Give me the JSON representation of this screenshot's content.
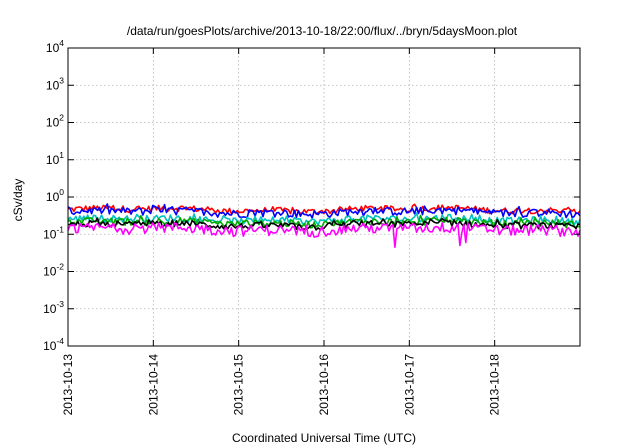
{
  "chart_data": {
    "type": "line",
    "title": "/data/run/goesPlots/archive/2013-10-18/22:00/flux/../bryn/5daysMoon.plot",
    "xlabel": "Coordinated Universal Time (UTC)",
    "ylabel": "cSv/day",
    "yscale": "log",
    "ylim": [
      0.0001,
      10000
    ],
    "y_ticks": [
      {
        "base": "10",
        "exp": "-4",
        "value": 0.0001
      },
      {
        "base": "10",
        "exp": "-3",
        "value": 0.001
      },
      {
        "base": "10",
        "exp": "-2",
        "value": 0.01
      },
      {
        "base": "10",
        "exp": "-1",
        "value": 0.1
      },
      {
        "base": "10",
        "exp": "0",
        "value": 1
      },
      {
        "base": "10",
        "exp": "1",
        "value": 10
      },
      {
        "base": "10",
        "exp": "2",
        "value": 100
      },
      {
        "base": "10",
        "exp": "3",
        "value": 1000
      },
      {
        "base": "10",
        "exp": "4",
        "value": 10000
      }
    ],
    "x_ticks": [
      "2013-10-13",
      "2013-10-14",
      "2013-10-15",
      "2013-10-16",
      "2013-10-17",
      "2013-10-18"
    ],
    "xlim": [
      "2013-10-13",
      "2013-10-19"
    ],
    "grid": true,
    "series": [
      {
        "color": "#ff0000",
        "level": 0.46,
        "noise": 0.1
      },
      {
        "color": "#0000ff",
        "level": 0.4,
        "noise": 0.11
      },
      {
        "color": "#00c0c0",
        "level": 0.25,
        "noise": 0.06
      },
      {
        "color": "#00aa00",
        "level": 0.21,
        "noise": 0.05
      },
      {
        "color": "#000000",
        "level": 0.18,
        "noise": 0.04
      },
      {
        "color": "#ff00ff",
        "level": 0.14,
        "noise": 0.05,
        "dips": [
          {
            "x": "2013-10-16 20:00",
            "value": 0.045
          },
          {
            "x": "2013-10-17 14:00",
            "value": 0.05
          },
          {
            "x": "2013-10-17 16:00",
            "value": 0.06
          }
        ]
      }
    ]
  }
}
